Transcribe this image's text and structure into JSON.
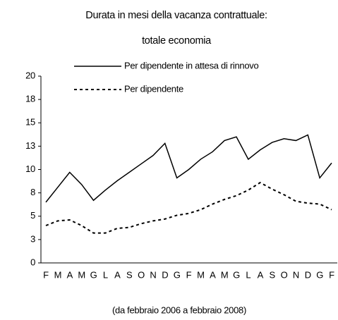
{
  "chart_data": {
    "type": "line",
    "title": [
      "Durata in mesi della vacanza contrattuale:",
      "totale economia"
    ],
    "note": "(da febbraio  2006 a febbraio 2008)",
    "categories": [
      "F",
      "M",
      "A",
      "M",
      "G",
      "L",
      "A",
      "S",
      "O",
      "N",
      "D",
      "G",
      "F",
      "M",
      "A",
      "M",
      "G",
      "L",
      "A",
      "S",
      "O",
      "N",
      "D",
      "G",
      "F"
    ],
    "series": [
      {
        "name": "Per dipendente in attesa di rinnovo",
        "color": "#000000",
        "dash": "solid",
        "values": [
          6.5,
          8.1,
          9.7,
          8.4,
          6.7,
          7.8,
          8.8,
          9.7,
          10.6,
          11.5,
          12.8,
          9.1,
          10.0,
          11.1,
          11.9,
          13.1,
          13.5,
          11.1,
          12.1,
          12.9,
          13.3,
          13.1,
          13.7,
          9.1,
          10.7
        ]
      },
      {
        "name": "Per dipendente",
        "color": "#000000",
        "dash": "dotted",
        "values": [
          4.0,
          4.5,
          4.6,
          4.0,
          3.2,
          3.2,
          3.7,
          3.8,
          4.2,
          4.5,
          4.7,
          5.1,
          5.3,
          5.7,
          6.3,
          6.8,
          7.2,
          7.8,
          8.6,
          7.9,
          7.3,
          6.6,
          6.4,
          6.3,
          5.7
        ]
      }
    ],
    "ylim": [
      0,
      20
    ],
    "yticks": [
      0,
      {
        "value": 2.5,
        "label": "3"
      },
      5,
      {
        "value": 7.5,
        "label": "8"
      },
      10,
      {
        "value": 12.5,
        "label": "13"
      },
      15,
      {
        "value": 17.5,
        "label": "18"
      },
      20
    ],
    "grid": false
  }
}
